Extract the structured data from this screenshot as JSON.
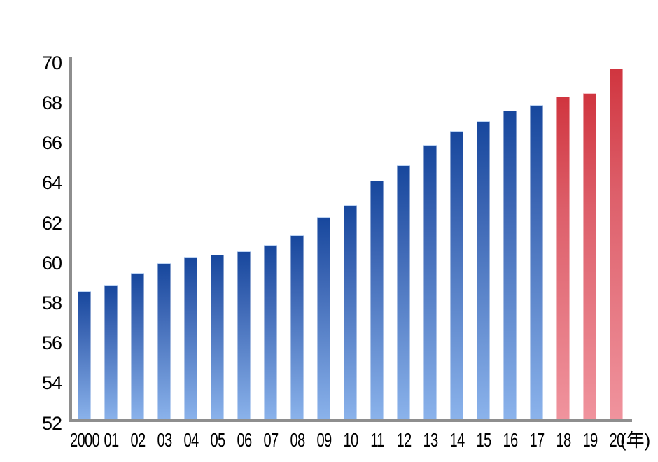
{
  "chart_data": {
    "type": "bar",
    "title": "",
    "categories": [
      "2000",
      "01",
      "02",
      "03",
      "04",
      "05",
      "06",
      "07",
      "08",
      "09",
      "10",
      "11",
      "12",
      "13",
      "14",
      "15",
      "16",
      "17",
      "18",
      "19",
      "20"
    ],
    "values": [
      58.6,
      58.9,
      59.5,
      60.0,
      60.3,
      60.4,
      60.6,
      60.9,
      61.4,
      62.3,
      62.9,
      64.1,
      64.9,
      65.9,
      66.6,
      67.1,
      67.6,
      67.9,
      68.3,
      68.5,
      69.7
    ],
    "highlight_categories": [
      "18",
      "19",
      "20"
    ],
    "x_unit_label": "(年)",
    "ylim": [
      52,
      70
    ],
    "yticks": [
      70,
      68,
      66,
      64,
      62,
      60,
      58,
      56,
      54,
      52
    ],
    "grid": false,
    "legend_position": "none",
    "colors": {
      "bar_gradient_top": "#17479d",
      "bar_gradient_bottom": "#8cb4ec",
      "highlight_gradient_top": "#d0353f",
      "highlight_gradient_bottom": "#f0949e",
      "axis": "#8e8e8e",
      "text": "#000000",
      "background": "#ffffff"
    }
  }
}
